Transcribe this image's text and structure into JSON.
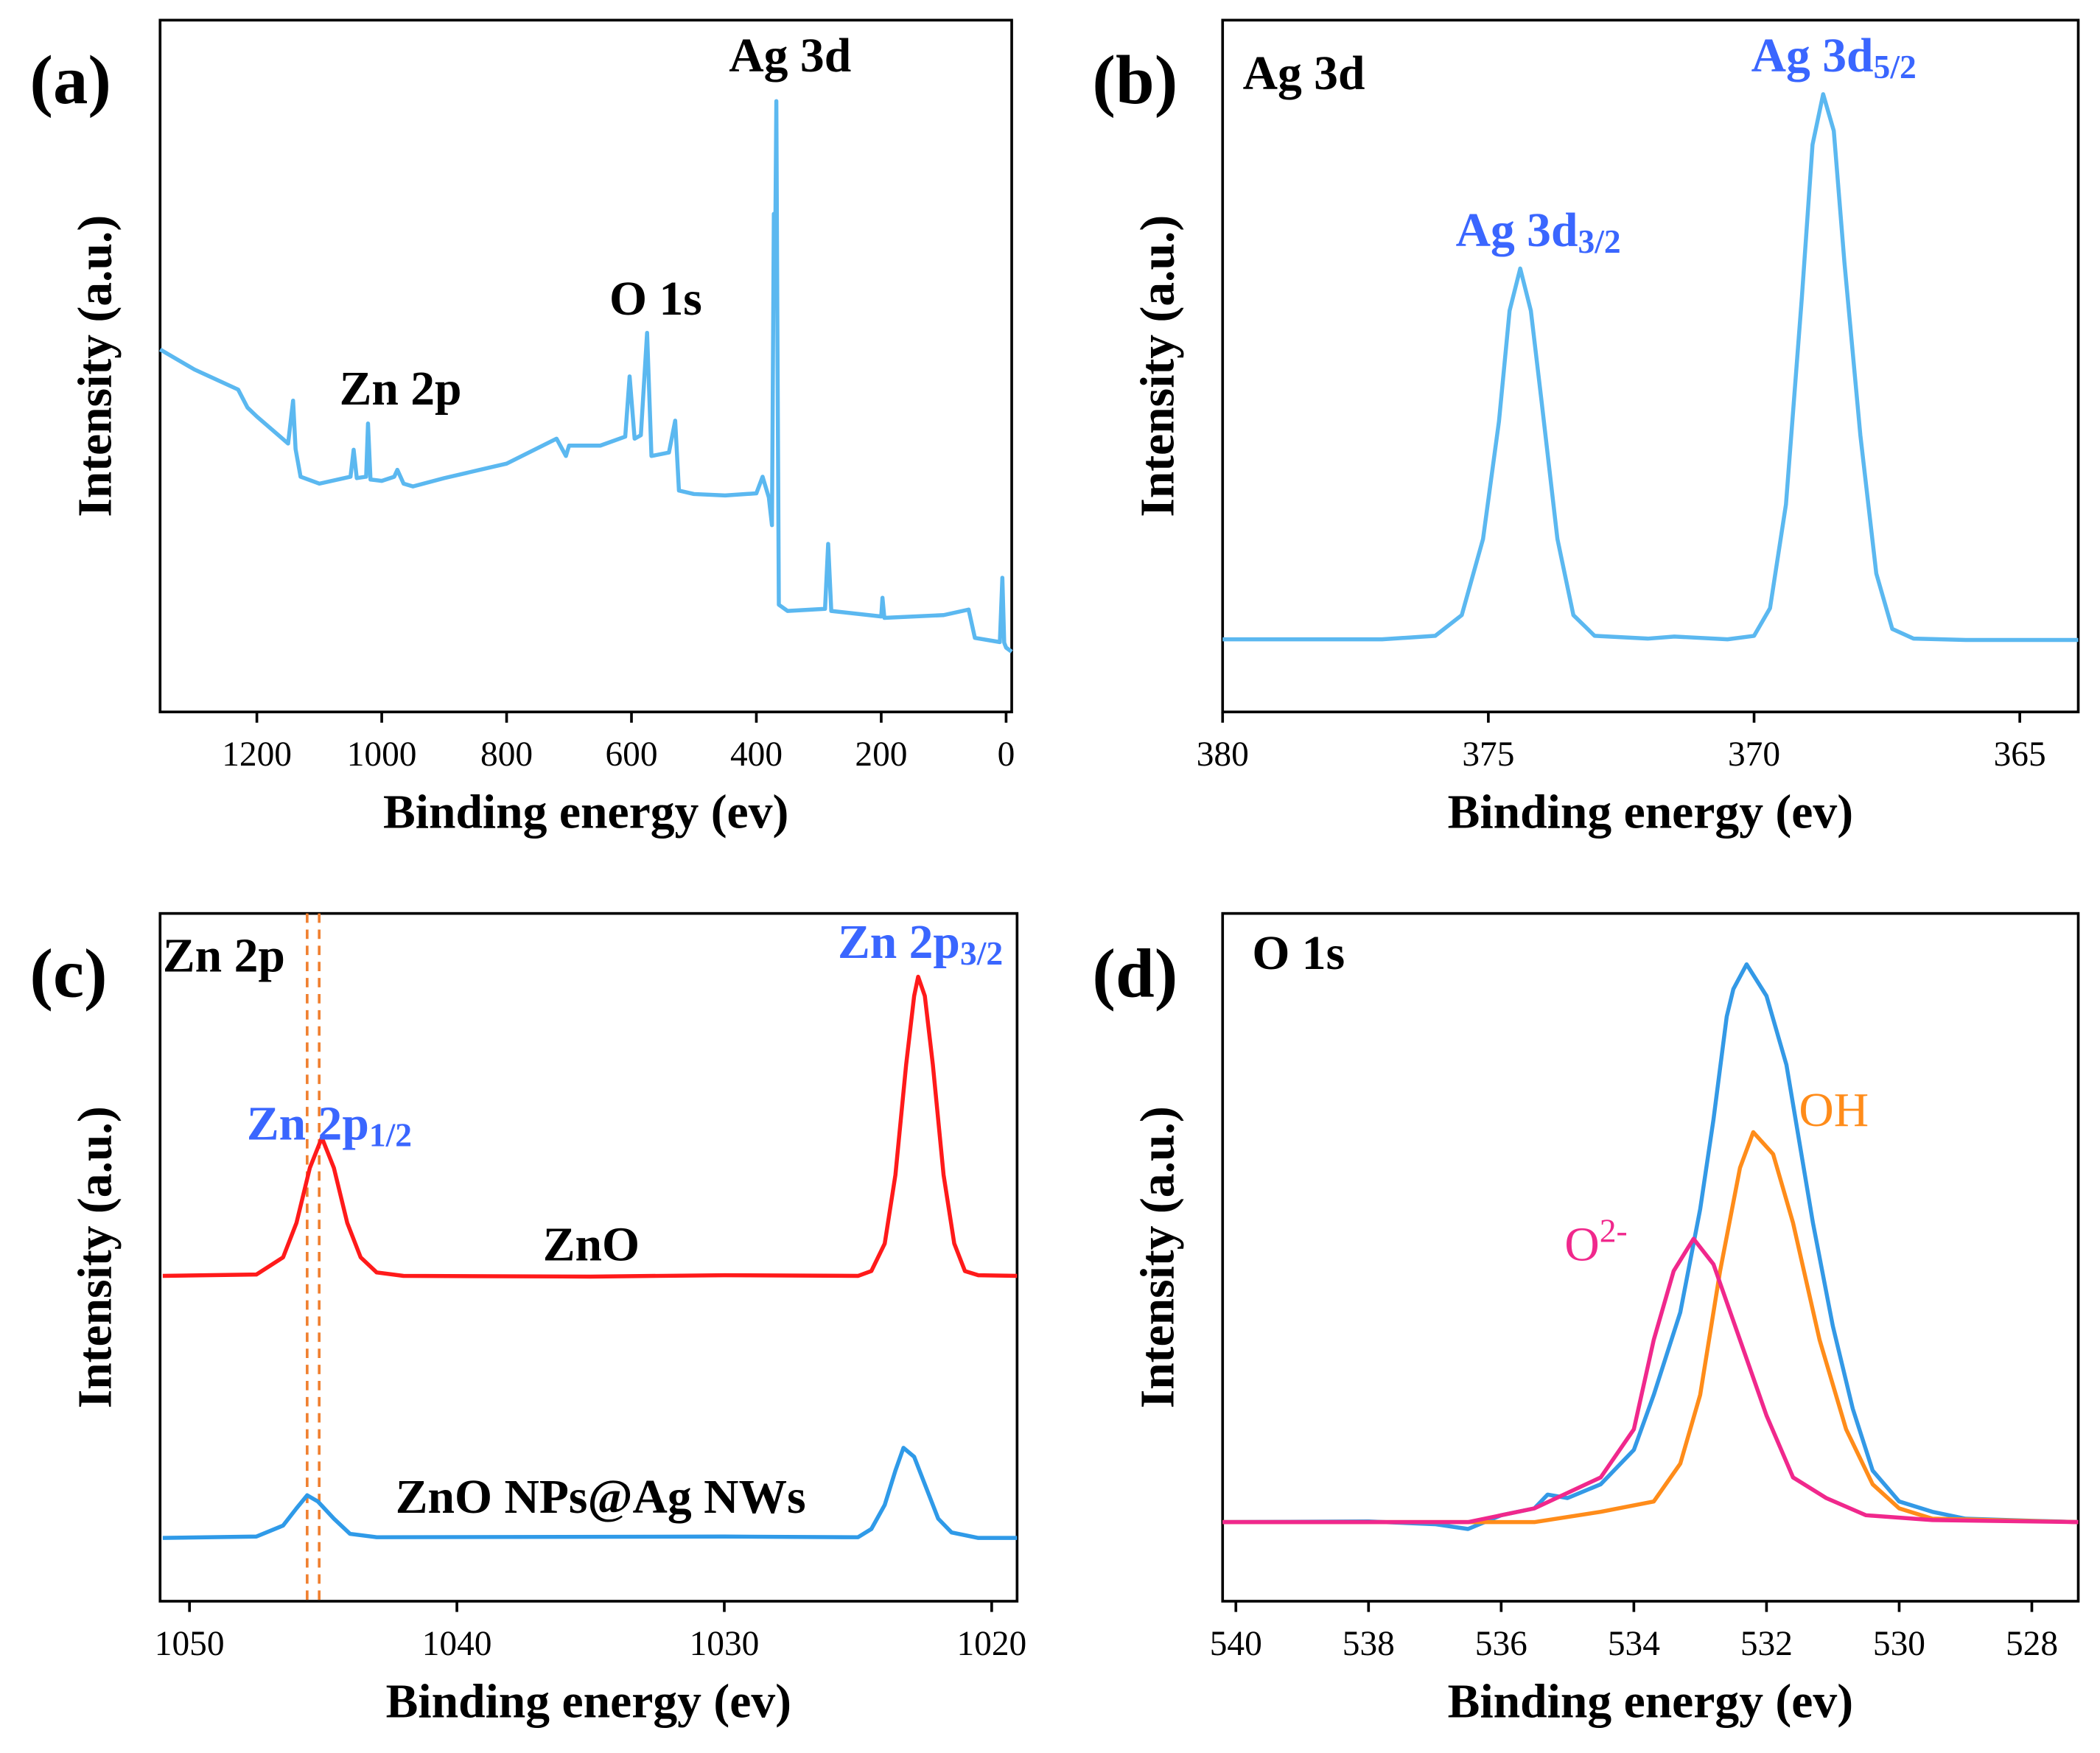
{
  "chart_data": [
    {
      "type": "line",
      "panel_label": "(a)",
      "xlabel": "Binding energy (ev)",
      "ylabel": "Intensity (a.u.)",
      "xlim": [
        1355,
        -9
      ],
      "ylim": [
        0,
        100
      ],
      "xticks": [
        1200,
        1000,
        800,
        600,
        400,
        200,
        0
      ],
      "annotations": [
        {
          "text": "Ag 3d",
          "color": "#000000"
        },
        {
          "text": "O 1s",
          "color": "#000000"
        },
        {
          "text": "Zn 2p",
          "color": "#000000"
        }
      ],
      "series": [
        {
          "color": "#5bb8f0",
          "x": [
            1355,
            1300,
            1230,
            1215,
            1200,
            1150,
            1142,
            1138,
            1130,
            1100,
            1050,
            1045,
            1040,
            1025,
            1022,
            1018,
            1000,
            980,
            975,
            965,
            950,
            900,
            800,
            720,
            705,
            700,
            650,
            610,
            603,
            595,
            585,
            575,
            568,
            540,
            530,
            524,
            500,
            450,
            400,
            390,
            380,
            375,
            372,
            370,
            368,
            366,
            364,
            350,
            290,
            285,
            280,
            200,
            198,
            195,
            100,
            60,
            50,
            10,
            6,
            3,
            0,
            -9
          ],
          "values": [
            52.4,
            49.5,
            46.6,
            44,
            42.7,
            38.8,
            45.0,
            38,
            34.0,
            33.0,
            34.0,
            37.9,
            33.8,
            34,
            41.7,
            33.6,
            33.4,
            34,
            35.0,
            33,
            32.6,
            33.8,
            35.9,
            39.5,
            37,
            38.5,
            38.5,
            39.8,
            48.5,
            39.5,
            40,
            54.8,
            37,
            37.5,
            42.1,
            32,
            31.5,
            31.3,
            31.6,
            34,
            31,
            27,
            72,
            65,
            88.3,
            50,
            15.5,
            14.6,
            14.9,
            24.3,
            14.6,
            13.8,
            16.5,
            13.6,
            14.0,
            14.8,
            10.7,
            10.1,
            19.4,
            10,
            9.3,
            8.7
          ]
        }
      ]
    },
    {
      "type": "line",
      "panel_label": "(b)",
      "title": "Ag 3d",
      "xlabel": "Binding energy (ev)",
      "ylabel": "Intensity (a.u.)",
      "xlim": [
        380,
        363.9
      ],
      "ylim": [
        0,
        100
      ],
      "xticks": [
        380,
        375,
        370,
        365
      ],
      "annotations": [
        {
          "text": "Ag 3d",
          "sub": "5/2",
          "color": "#3a66ff"
        },
        {
          "text": "Ag 3d",
          "sub": "3/2",
          "color": "#3a66ff"
        }
      ],
      "series": [
        {
          "color": "#5bb8f0",
          "x": [
            380,
            377,
            376,
            375.5,
            375.1,
            374.8,
            374.6,
            374.4,
            374.2,
            374,
            373.7,
            373.4,
            373,
            372,
            371.5,
            370.5,
            370,
            369.7,
            369.4,
            369.1,
            368.9,
            368.7,
            368.5,
            368.3,
            368,
            367.7,
            367.4,
            367,
            366,
            363.9
          ],
          "values": [
            10.5,
            10.5,
            11,
            14,
            25,
            42,
            58,
            64.1,
            58,
            45,
            25,
            14,
            11,
            10.6,
            10.9,
            10.5,
            11,
            15,
            30,
            60,
            82,
            89.3,
            84,
            65,
            40,
            20,
            12,
            10.6,
            10.4,
            10.4
          ]
        }
      ]
    },
    {
      "type": "line",
      "panel_label": "(c)",
      "title": "Zn 2p",
      "xlabel": "Binding energy (ev)",
      "ylabel": "Intensity (a.u.)",
      "xlim": [
        1051.1,
        1019.05
      ],
      "ylim": [
        0,
        100
      ],
      "xticks": [
        1050,
        1040,
        1030,
        1020
      ],
      "vlines": [
        1045.6,
        1045.15
      ],
      "vline_color": "#f08030",
      "annotations": [
        {
          "text": "Zn 2p",
          "sub": "3/2",
          "color": "#3a66ff"
        },
        {
          "text": "Zn 2p",
          "sub": "1/2",
          "color": "#3a66ff"
        }
      ],
      "series": [
        {
          "name": "ZnO",
          "color": "#ff1a1a",
          "x": [
            1051,
            1047.5,
            1046.5,
            1046,
            1045.5,
            1045.05,
            1044.6,
            1044.1,
            1043.6,
            1043,
            1042,
            1035,
            1030,
            1025,
            1024.5,
            1024,
            1023.6,
            1023.2,
            1022.9,
            1022.75,
            1022.5,
            1022.2,
            1021.8,
            1021.4,
            1021,
            1020.5,
            1019.05
          ],
          "values": [
            47.3,
            47.5,
            50,
            55,
            63,
            67.4,
            63,
            55,
            50,
            47.8,
            47.3,
            47.2,
            47.4,
            47.3,
            48,
            52,
            62,
            78,
            88,
            90.8,
            88,
            78,
            62,
            52,
            48,
            47.4,
            47.3
          ]
        },
        {
          "name": "ZnO NPs@Ag NWs",
          "color": "#2f9ae8",
          "x": [
            1051,
            1047.5,
            1046.5,
            1046,
            1045.6,
            1045.2,
            1044.6,
            1044,
            1043,
            1030,
            1025,
            1024.5,
            1024,
            1023.6,
            1023.3,
            1022.9,
            1022.5,
            1022,
            1021.5,
            1020.5,
            1019.05
          ],
          "values": [
            9.2,
            9.4,
            11,
            13.5,
            15.4,
            14.5,
            12,
            9.8,
            9.3,
            9.4,
            9.3,
            10.5,
            14,
            19,
            22.3,
            21,
            17,
            12,
            10,
            9.2,
            9.2
          ]
        }
      ]
    },
    {
      "type": "line",
      "panel_label": "(d)",
      "title": "O 1s",
      "xlabel": "Binding energy (ev)",
      "ylabel": "Intensity (a.u.)",
      "xlim": [
        540.2,
        527.3
      ],
      "ylim": [
        0,
        100
      ],
      "xticks": [
        540,
        538,
        536,
        534,
        532,
        530,
        528
      ],
      "annotations": [
        {
          "text": "OH",
          "color": "#ff8c1a"
        },
        {
          "text": "O",
          "sup": "2-",
          "color": "#f0288c"
        }
      ],
      "series": [
        {
          "color": "#3399e6",
          "x": [
            540.2,
            538,
            537,
            536.5,
            536,
            535.5,
            535.3,
            535,
            534.5,
            534,
            533.7,
            533.3,
            533,
            532.8,
            532.6,
            532.5,
            532.3,
            532,
            531.7,
            531.3,
            531,
            530.7,
            530.4,
            530,
            529.5,
            529,
            528,
            527.3
          ],
          "values": [
            11.5,
            11.6,
            11.2,
            10.5,
            12.5,
            13.5,
            15.5,
            15,
            17,
            22,
            30,
            42,
            57,
            70,
            85,
            89,
            92.6,
            88,
            78,
            55,
            40,
            28,
            19,
            14.5,
            13,
            12,
            11.7,
            11.5
          ]
        },
        {
          "color": "#ff8c1a",
          "x": [
            540.2,
            535.5,
            534.5,
            533.7,
            533.3,
            533,
            532.7,
            532.4,
            532.2,
            531.9,
            531.6,
            531.2,
            530.8,
            530.4,
            530,
            529.5,
            527.3
          ],
          "values": [
            11.5,
            11.5,
            13,
            14.5,
            20,
            30,
            48,
            63,
            68.2,
            65,
            55,
            38,
            25,
            17,
            13.5,
            12,
            11.5
          ]
        },
        {
          "color": "#f0288c",
          "x": [
            540.2,
            536.5,
            535.5,
            534.5,
            534,
            533.7,
            533.4,
            533.1,
            532.8,
            532.4,
            532,
            531.6,
            531.1,
            530.5,
            529.5,
            527.3
          ],
          "values": [
            11.5,
            11.5,
            13.5,
            18,
            25,
            38,
            48,
            52.7,
            49,
            38,
            27,
            18,
            15,
            12.5,
            11.8,
            11.5
          ]
        }
      ]
    }
  ]
}
